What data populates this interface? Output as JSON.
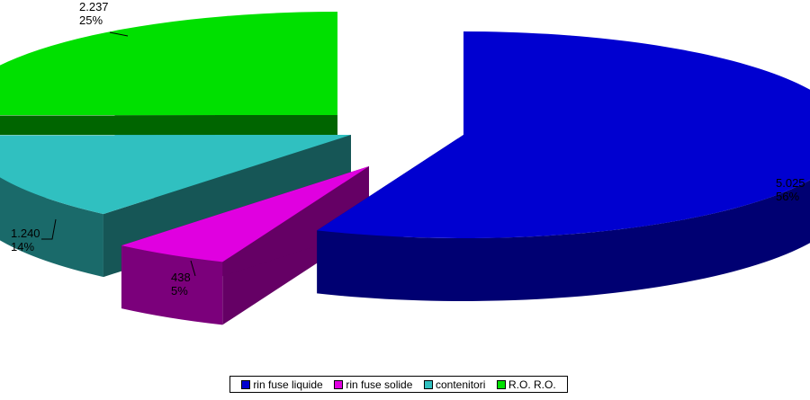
{
  "chart_data": {
    "type": "pie",
    "title": "",
    "categories": [
      "rin fuse liquide",
      "rin fuse solide",
      "contenitori",
      "R.O. R.O."
    ],
    "values": [
      5025,
      438,
      1240,
      2237
    ],
    "value_labels": [
      "5.025",
      "438",
      "1.240",
      "2.237"
    ],
    "percent_labels": [
      "56%",
      "5%",
      "14%",
      "25%"
    ],
    "colors": [
      "#0000D0",
      "#E000E0",
      "#30C0C0",
      "#00E000"
    ],
    "exploded": true,
    "legend_position": "bottom"
  },
  "legend": {
    "items": [
      {
        "label": "rin fuse liquide",
        "color": "#0000D0"
      },
      {
        "label": "rin fuse solide",
        "color": "#E000E0"
      },
      {
        "label": "contenitori",
        "color": "#30C0C0"
      },
      {
        "label": "R.O. R.O.",
        "color": "#00E000"
      }
    ]
  }
}
